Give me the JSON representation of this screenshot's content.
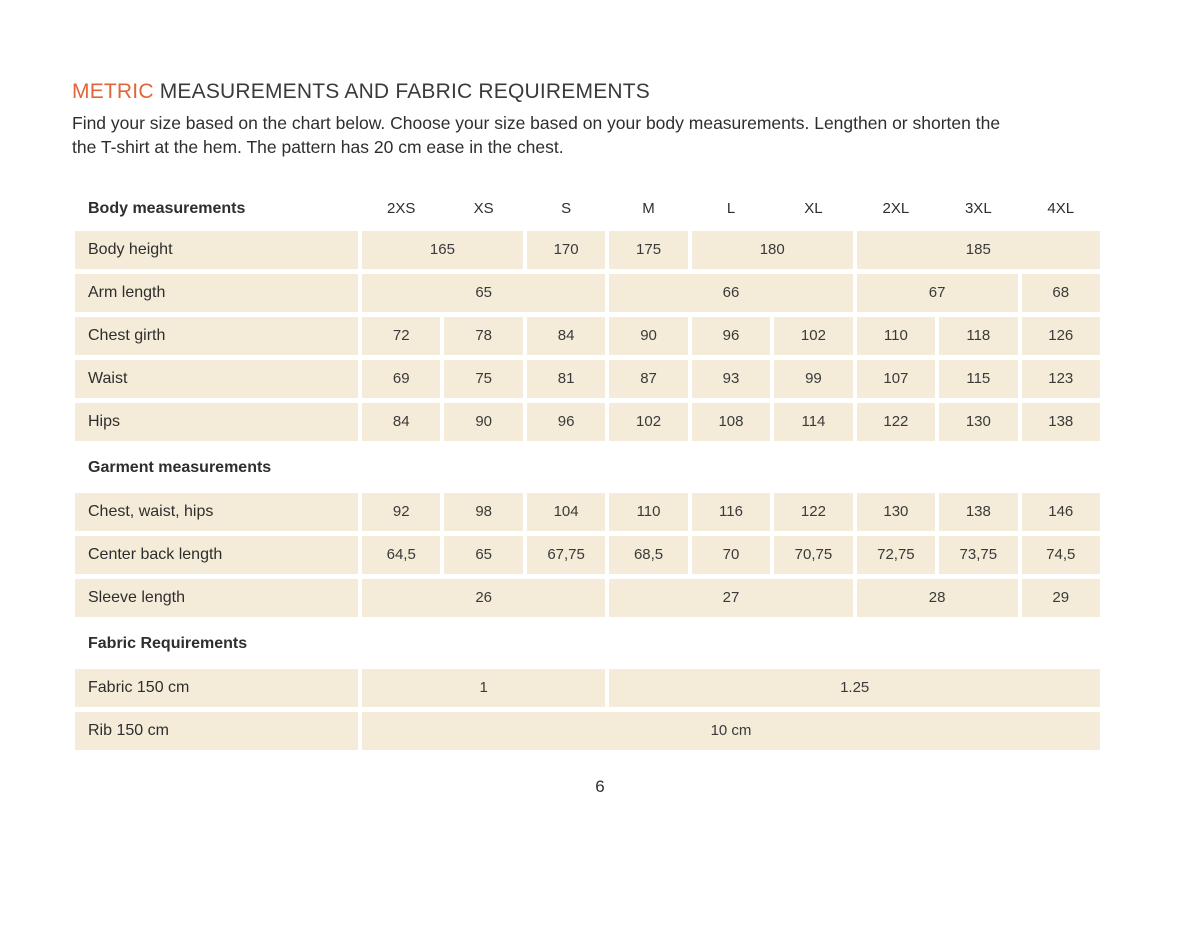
{
  "page": {
    "title_accent": "METRIC",
    "title_rest": " MEASUREMENTS AND FABRIC REQUIREMENTS",
    "intro_line1": "Find your size based on the chart below. Choose your size based on your body measurements. Lengthen or shorten the",
    "intro_line2": "the T-shirt at the hem. The pattern has 20 cm ease in the chest.",
    "page_number": "6"
  },
  "colors": {
    "accent_orange": "#e0653c",
    "cell_beige": "#f4ecd9",
    "text_dark": "#2e2e2e"
  },
  "size_chart": {
    "header_label": "Body measurements",
    "sizes": [
      "2XS",
      "XS",
      "S",
      "M",
      "L",
      "XL",
      "2XL",
      "3XL",
      "4XL"
    ],
    "body_rows": [
      {
        "label": "Body height",
        "cells": [
          {
            "text": "165",
            "span": 2
          },
          {
            "text": "170",
            "span": 1
          },
          {
            "text": "175",
            "span": 1
          },
          {
            "text": "180",
            "span": 2
          },
          {
            "text": "185",
            "span": 3
          }
        ]
      },
      {
        "label": "Arm length",
        "cells": [
          {
            "text": "65",
            "span": 3
          },
          {
            "text": "66",
            "span": 3
          },
          {
            "text": "67",
            "span": 2
          },
          {
            "text": "68",
            "span": 1
          }
        ]
      },
      {
        "label": "Chest girth",
        "cells": [
          {
            "text": "72",
            "span": 1
          },
          {
            "text": "78",
            "span": 1
          },
          {
            "text": "84",
            "span": 1
          },
          {
            "text": "90",
            "span": 1
          },
          {
            "text": "96",
            "span": 1
          },
          {
            "text": "102",
            "span": 1
          },
          {
            "text": "110",
            "span": 1
          },
          {
            "text": "118",
            "span": 1
          },
          {
            "text": "126",
            "span": 1
          }
        ]
      },
      {
        "label": "Waist",
        "cells": [
          {
            "text": "69",
            "span": 1
          },
          {
            "text": "75",
            "span": 1
          },
          {
            "text": "81",
            "span": 1
          },
          {
            "text": "87",
            "span": 1
          },
          {
            "text": "93",
            "span": 1
          },
          {
            "text": "99",
            "span": 1
          },
          {
            "text": "107",
            "span": 1
          },
          {
            "text": "115",
            "span": 1
          },
          {
            "text": "123",
            "span": 1
          }
        ]
      },
      {
        "label": "Hips",
        "cells": [
          {
            "text": "84",
            "span": 1
          },
          {
            "text": "90",
            "span": 1
          },
          {
            "text": "96",
            "span": 1
          },
          {
            "text": "102",
            "span": 1
          },
          {
            "text": "108",
            "span": 1
          },
          {
            "text": "114",
            "span": 1
          },
          {
            "text": "122",
            "span": 1
          },
          {
            "text": "130",
            "span": 1
          },
          {
            "text": "138",
            "span": 1
          }
        ]
      }
    ],
    "garment_section_label": "Garment measurements",
    "garment_rows": [
      {
        "label": "Chest, waist, hips",
        "cells": [
          {
            "text": "92",
            "span": 1
          },
          {
            "text": "98",
            "span": 1
          },
          {
            "text": "104",
            "span": 1
          },
          {
            "text": "110",
            "span": 1
          },
          {
            "text": "116",
            "span": 1
          },
          {
            "text": "122",
            "span": 1
          },
          {
            "text": "130",
            "span": 1
          },
          {
            "text": "138",
            "span": 1
          },
          {
            "text": "146",
            "span": 1
          }
        ]
      },
      {
        "label": "Center back length",
        "cells": [
          {
            "text": "64,5",
            "span": 1
          },
          {
            "text": "65",
            "span": 1
          },
          {
            "text": "67,75",
            "span": 1
          },
          {
            "text": "68,5",
            "span": 1
          },
          {
            "text": "70",
            "span": 1
          },
          {
            "text": "70,75",
            "span": 1
          },
          {
            "text": "72,75",
            "span": 1
          },
          {
            "text": "73,75",
            "span": 1
          },
          {
            "text": "74,5",
            "span": 1
          }
        ]
      },
      {
        "label": "Sleeve length",
        "cells": [
          {
            "text": "26",
            "span": 3
          },
          {
            "text": "27",
            "span": 3
          },
          {
            "text": "28",
            "span": 2
          },
          {
            "text": "29",
            "span": 1
          }
        ]
      }
    ],
    "fabric_section_label": "Fabric Requirements",
    "fabric_rows": [
      {
        "label": "Fabric 150 cm",
        "cells": [
          {
            "text": "1",
            "span": 3
          },
          {
            "text": "1.25",
            "span": 6
          }
        ]
      },
      {
        "label": "Rib 150 cm",
        "cells": [
          {
            "text": "10 cm",
            "span": 9
          }
        ]
      }
    ]
  }
}
